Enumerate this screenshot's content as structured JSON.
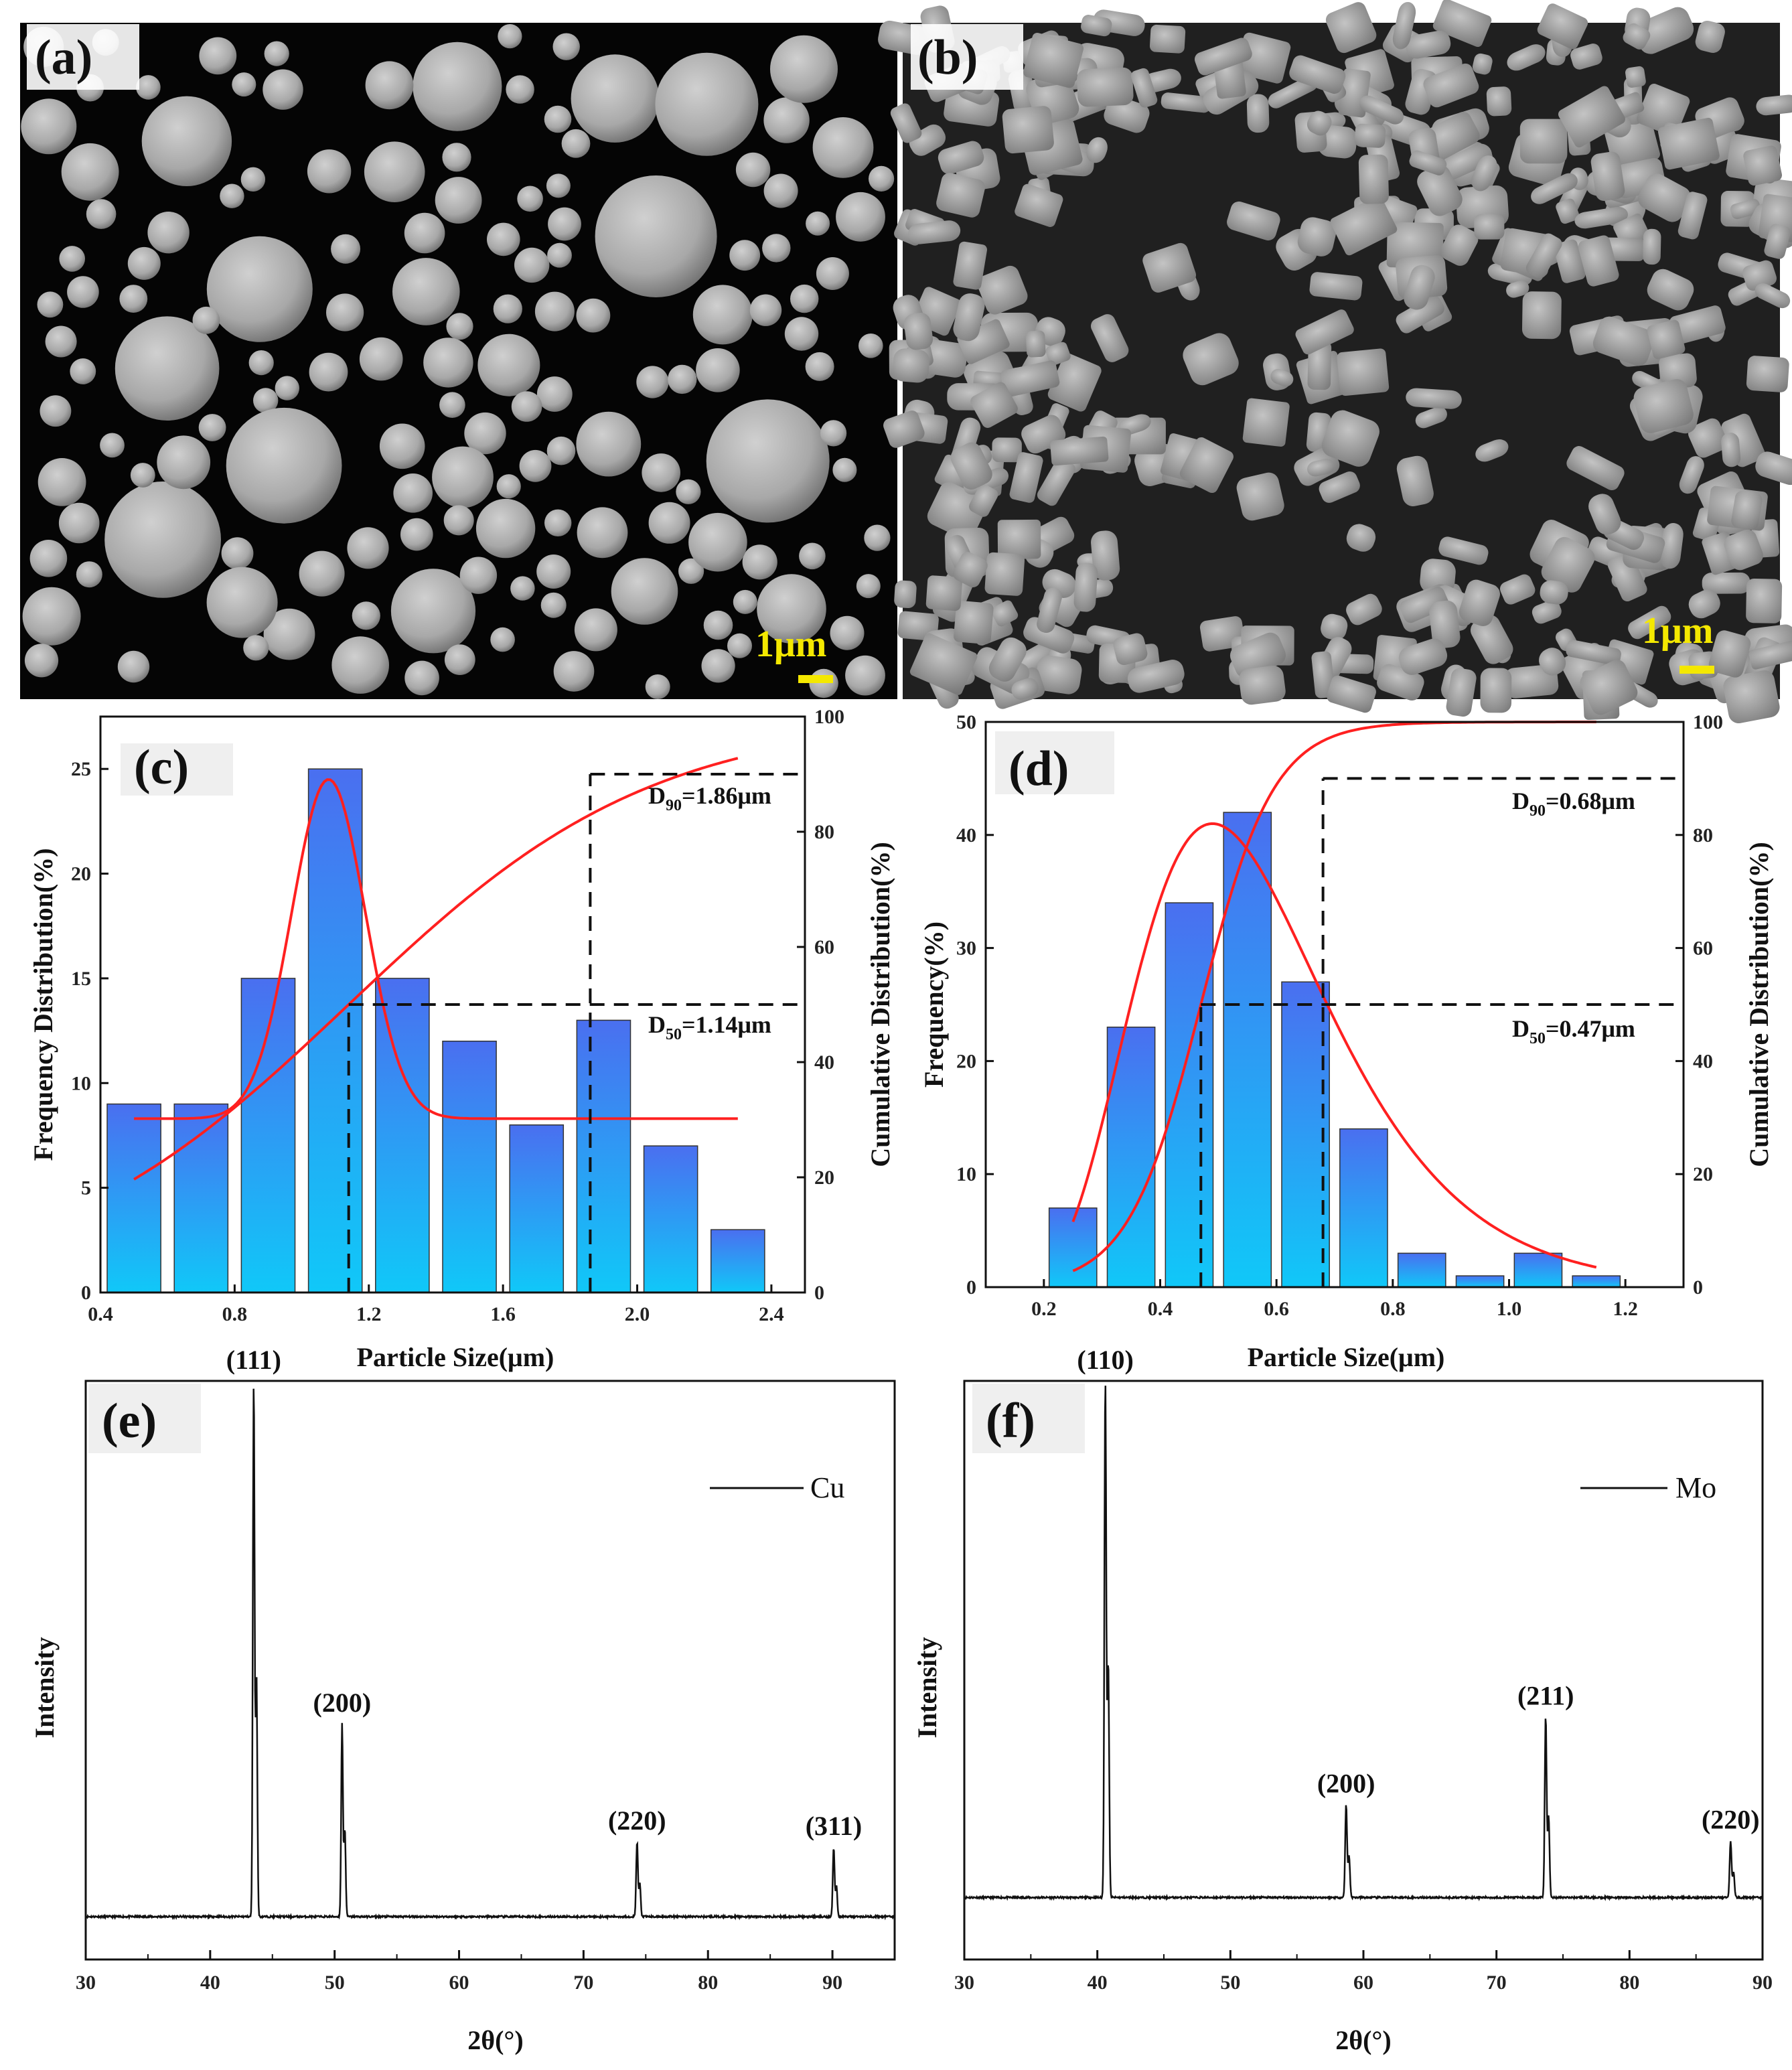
{
  "panels": {
    "a": {
      "label": "(a)",
      "scale_bar": "1μm",
      "kind": "sem-spherical"
    },
    "b": {
      "label": "(b)",
      "scale_bar": "1μm",
      "kind": "sem-irregular"
    }
  },
  "colors": {
    "bar_top": "#4a6ff0",
    "bar_bottom": "#10c8f8",
    "fit": "#ff2020",
    "scale": "#f4e800"
  },
  "chart_data": [
    {
      "id": "c",
      "label": "(c)",
      "type": "bar",
      "categories": [
        0.5,
        0.7,
        0.9,
        1.1,
        1.3,
        1.5,
        1.7,
        1.9,
        2.1,
        2.3
      ],
      "values": [
        9,
        9,
        15,
        25,
        15,
        12,
        8,
        13,
        7,
        3
      ],
      "xlim": [
        0.4,
        2.5
      ],
      "ylim": [
        0,
        27.5
      ],
      "y2lim": [
        0,
        100
      ],
      "xticks": [
        0.4,
        0.8,
        1.2,
        1.6,
        2.0,
        2.4
      ],
      "xtick_labels": [
        "0.4",
        "0.8",
        "1.2",
        "1.6",
        "2.0",
        "2.4"
      ],
      "yticks": [
        0,
        5,
        10,
        15,
        20,
        25
      ],
      "y2ticks": [
        0,
        20,
        40,
        60,
        80,
        100
      ],
      "xlabel": "Particle Size(μm)",
      "ylabel": "Frequency Distribution(%)",
      "y2label": "Cumulative Distribution(%)",
      "bar_width": 0.16,
      "freq_fit": {
        "x_range": [
          0.5,
          2.3
        ],
        "baseline": 8.3,
        "amplitude": 16.2,
        "center": 1.08,
        "sigma": 0.11
      },
      "cumulative": {
        "x_range": [
          0.5,
          2.3
        ],
        "center": 1.14,
        "k": 2.2
      },
      "d50": {
        "x": 1.14,
        "pct": 50,
        "label_main": "D",
        "label_sub": "50",
        "label_value": "=1.14μm"
      },
      "d90": {
        "x": 1.86,
        "pct": 90,
        "label_main": "D",
        "label_sub": "90",
        "label_value": "=1.86μm"
      }
    },
    {
      "id": "d",
      "label": "(d)",
      "type": "bar",
      "categories": [
        0.25,
        0.35,
        0.45,
        0.55,
        0.65,
        0.75,
        0.85,
        0.95,
        1.05,
        1.15
      ],
      "values": [
        7,
        23,
        34,
        42,
        27,
        14,
        3,
        1,
        3,
        1
      ],
      "xlim": [
        0.1,
        1.3
      ],
      "ylim": [
        0,
        50
      ],
      "y2lim": [
        0,
        100
      ],
      "xticks": [
        0.2,
        0.4,
        0.6,
        0.8,
        1.0,
        1.2
      ],
      "xtick_labels": [
        "0.2",
        "0.4",
        "0.6",
        "0.8",
        "1.0",
        "1.2"
      ],
      "yticks": [
        0,
        10,
        20,
        30,
        40,
        50
      ],
      "y2ticks": [
        0,
        20,
        40,
        60,
        80,
        100
      ],
      "xlabel": "Particle Size(μm)",
      "ylabel": "Frequency(%)",
      "y2label": "Cumulative Distribution(%)",
      "bar_width": 0.082,
      "freq_fit": {
        "x_range": [
          0.25,
          1.15
        ],
        "peak": 41,
        "mode": 0.49,
        "s": 0.34
      },
      "cumulative": {
        "x_range": [
          0.25,
          1.15
        ],
        "center": 0.47,
        "k": 16
      },
      "d50": {
        "x": 0.47,
        "pct": 50,
        "label_main": "D",
        "label_sub": "50",
        "label_value": "=0.47μm"
      },
      "d90": {
        "x": 0.68,
        "pct": 90,
        "label_main": "D",
        "label_sub": "90",
        "label_value": "=0.68μm"
      }
    },
    {
      "id": "e",
      "label": "(e)",
      "type": "line",
      "xlim": [
        30,
        95
      ],
      "xticks": [
        30,
        40,
        50,
        60,
        70,
        80,
        90
      ],
      "xtick_labels": [
        "30",
        "40",
        "50",
        "60",
        "70",
        "80",
        "90"
      ],
      "ylim": [
        -8,
        100
      ],
      "baseline": 0,
      "xlabel": "2θ(°)",
      "ylabel": "Intensity",
      "legend": "Cu",
      "peaks": [
        {
          "x": 43.5,
          "height": 100,
          "label": "(111)"
        },
        {
          "x": 50.6,
          "height": 36,
          "label": "(200)"
        },
        {
          "x": 74.3,
          "height": 14,
          "label": "(220)"
        },
        {
          "x": 90.1,
          "height": 13,
          "label": "(311)"
        }
      ]
    },
    {
      "id": "f",
      "label": "(f)",
      "type": "line",
      "xlim": [
        30,
        90
      ],
      "xticks": [
        30,
        40,
        50,
        60,
        70,
        80,
        90
      ],
      "xtick_labels": [
        "30",
        "40",
        "50",
        "60",
        "70",
        "80",
        "90"
      ],
      "ylim": [
        -12,
        100
      ],
      "baseline": 0,
      "xlabel": "2θ(°)",
      "ylabel": "Intensity",
      "legend": "Mo",
      "peaks": [
        {
          "x": 40.6,
          "height": 100,
          "label": "(110)"
        },
        {
          "x": 58.7,
          "height": 18,
          "label": "(200)"
        },
        {
          "x": 73.7,
          "height": 35,
          "label": "(211)"
        },
        {
          "x": 87.6,
          "height": 11,
          "label": "(220)"
        }
      ]
    }
  ]
}
